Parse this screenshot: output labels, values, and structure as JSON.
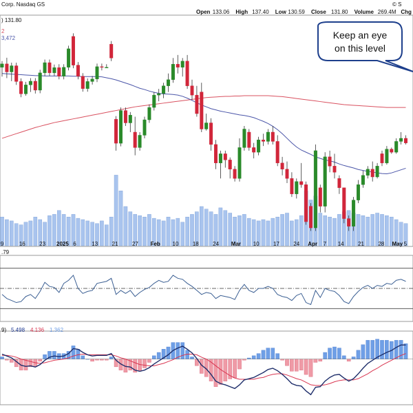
{
  "header": {
    "title": "Corp. Nasdaq GS",
    "ohlc": [
      {
        "label": "Open",
        "value": "133.06"
      },
      {
        "label": "High",
        "value": "137.40"
      },
      {
        "label": "Low",
        "value": "130.59"
      },
      {
        "label": "Close",
        "value": "131.80"
      },
      {
        "label": "Volume",
        "value": "269.4M"
      },
      {
        "label": "Chg",
        "value": ""
      }
    ],
    "corner_mark": "© S"
  },
  "legend": {
    "price_partial": ") 131.80",
    "ma_partial": "2",
    "ma_partial_2": "3,472",
    "rsi_partial": ".79",
    "macd_prefix": "9)",
    "macd_values": [
      {
        "value": "5.498",
        "color": "#1f3a93"
      },
      {
        "value": "4.136",
        "color": "#d9344f"
      },
      {
        "value": "1.362",
        "color": "#6f9fe6"
      }
    ]
  },
  "annotation": {
    "line1": "Keep an eye",
    "line2": "on this level"
  },
  "colors": {
    "up": "#2a8a2a",
    "down": "#d1263a",
    "ma_fast": "#4a55a8",
    "ma_slow": "#d9505f",
    "volume": "#a9c4ee",
    "rsi": "#3b5f93",
    "macd": "#1f2f6b",
    "signal": "#d9344f",
    "hist_pos": "#6f9fe6",
    "hist_neg": "#ef9aa6",
    "panel_border": "#999999"
  },
  "chart_data": {
    "type": "candlestick",
    "x_tick_labels": [
      "9",
      "16",
      "23",
      "2025",
      "6",
      "13",
      "21",
      "27",
      "Feb",
      "10",
      "18",
      "24",
      "Mar",
      "10",
      "17",
      "24",
      "Apr",
      "7",
      "14",
      "21",
      "28",
      "May",
      "5"
    ],
    "price_ylim": [
      85,
      155
    ],
    "candles": [
      {
        "o": 139.0,
        "h": 141.0,
        "l": 136.0,
        "c": 140.1
      },
      {
        "o": 140.1,
        "h": 142.1,
        "l": 135.5,
        "c": 137.5
      },
      {
        "o": 137.5,
        "h": 140.5,
        "l": 134.5,
        "c": 139.5
      },
      {
        "o": 139.5,
        "h": 140.5,
        "l": 133.3,
        "c": 134.4
      },
      {
        "o": 134.4,
        "h": 135.4,
        "l": 129.3,
        "c": 130.4
      },
      {
        "o": 130.4,
        "h": 134.3,
        "l": 129.8,
        "c": 133.3
      },
      {
        "o": 133.3,
        "h": 135.5,
        "l": 131.0,
        "c": 134.5
      },
      {
        "o": 134.5,
        "h": 135.5,
        "l": 130.5,
        "c": 131.6
      },
      {
        "o": 131.6,
        "h": 138.2,
        "l": 130.6,
        "c": 137.2
      },
      {
        "o": 137.2,
        "h": 141.5,
        "l": 136.2,
        "c": 140.5
      },
      {
        "o": 140.5,
        "h": 141.5,
        "l": 136.2,
        "c": 137.2
      },
      {
        "o": 137.2,
        "h": 139.9,
        "l": 136.2,
        "c": 138.9
      },
      {
        "o": 138.9,
        "h": 140.0,
        "l": 135.1,
        "c": 136.1
      },
      {
        "o": 136.1,
        "h": 140.0,
        "l": 135.1,
        "c": 139.0
      },
      {
        "o": 139.0,
        "h": 146.0,
        "l": 138.0,
        "c": 145.0
      },
      {
        "o": 149.0,
        "h": 150.0,
        "l": 138.7,
        "c": 139.7
      },
      {
        "o": 139.7,
        "h": 140.7,
        "l": 135.1,
        "c": 136.1
      },
      {
        "o": 136.1,
        "h": 137.1,
        "l": 131.1,
        "c": 132.1
      },
      {
        "o": 132.1,
        "h": 135.4,
        "l": 131.1,
        "c": 134.4
      },
      {
        "o": 134.4,
        "h": 136.2,
        "l": 133.4,
        "c": 135.2
      },
      {
        "o": 135.2,
        "h": 140.2,
        "l": 134.2,
        "c": 139.2
      },
      {
        "o": 139.2,
        "h": 140.2,
        "l": 138.0,
        "c": 139.0
      },
      {
        "o": 139.0,
        "h": 140.0,
        "l": 139.0,
        "c": 139.0
      },
      {
        "o": 146.5,
        "h": 147.5,
        "l": 141.0,
        "c": 142.0
      },
      {
        "o": 122.2,
        "h": 123.2,
        "l": 112.0,
        "c": 114.4
      },
      {
        "o": 114.4,
        "h": 126.0,
        "l": 113.4,
        "c": 125.0
      },
      {
        "o": 125.0,
        "h": 126.0,
        "l": 120.0,
        "c": 121.0
      },
      {
        "o": 121.0,
        "h": 124.5,
        "l": 118.0,
        "c": 123.5
      },
      {
        "o": 118.0,
        "h": 123.0,
        "l": 110.5,
        "c": 113.0
      },
      {
        "o": 113.0,
        "h": 118.0,
        "l": 112.0,
        "c": 117.0
      },
      {
        "o": 117.0,
        "h": 123.0,
        "l": 116.0,
        "c": 122.0
      },
      {
        "o": 122.0,
        "h": 127.0,
        "l": 121.0,
        "c": 126.0
      },
      {
        "o": 126.0,
        "h": 131.0,
        "l": 125.0,
        "c": 130.0
      },
      {
        "o": 130.0,
        "h": 132.0,
        "l": 128.0,
        "c": 130.5
      },
      {
        "o": 130.5,
        "h": 134.0,
        "l": 129.0,
        "c": 133.0
      },
      {
        "o": 133.0,
        "h": 137.0,
        "l": 131.0,
        "c": 135.0
      },
      {
        "o": 135.0,
        "h": 142.0,
        "l": 134.0,
        "c": 140.0
      },
      {
        "o": 140.0,
        "h": 143.0,
        "l": 137.0,
        "c": 139.0
      },
      {
        "o": 139.0,
        "h": 142.0,
        "l": 136.0,
        "c": 141.0
      },
      {
        "o": 141.0,
        "h": 143.0,
        "l": 132.0,
        "c": 133.0
      },
      {
        "o": 133.0,
        "h": 135.0,
        "l": 128.5,
        "c": 130.0
      },
      {
        "o": 130.0,
        "h": 133.0,
        "l": 123.0,
        "c": 124.0
      },
      {
        "o": 131.0,
        "h": 134.0,
        "l": 118.0,
        "c": 119.0
      },
      {
        "o": 119.0,
        "h": 124.0,
        "l": 118.5,
        "c": 121.0
      },
      {
        "o": 121.0,
        "h": 122.5,
        "l": 112.0,
        "c": 114.0
      },
      {
        "o": 114.0,
        "h": 115.5,
        "l": 106.0,
        "c": 108.0
      },
      {
        "o": 108.0,
        "h": 112.0,
        "l": 103.0,
        "c": 111.0
      },
      {
        "o": 111.0,
        "h": 112.0,
        "l": 106.5,
        "c": 109.0
      },
      {
        "o": 109.0,
        "h": 109.8,
        "l": 103.0,
        "c": 106.0
      },
      {
        "o": 106.0,
        "h": 107.0,
        "l": 102.0,
        "c": 103.0
      },
      {
        "o": 103.0,
        "h": 116.0,
        "l": 102.0,
        "c": 113.0
      },
      {
        "o": 113.0,
        "h": 120.0,
        "l": 112.0,
        "c": 119.0
      },
      {
        "o": 118.0,
        "h": 119.0,
        "l": 112.0,
        "c": 113.0
      },
      {
        "o": 113.0,
        "h": 114.5,
        "l": 109.5,
        "c": 111.5
      },
      {
        "o": 111.5,
        "h": 116.5,
        "l": 110.5,
        "c": 115.5
      },
      {
        "o": 115.5,
        "h": 117.5,
        "l": 113.5,
        "c": 115.0
      },
      {
        "o": 115.0,
        "h": 119.0,
        "l": 114.0,
        "c": 118.0
      },
      {
        "o": 118.0,
        "h": 120.0,
        "l": 114.0,
        "c": 115.0
      },
      {
        "o": 115.0,
        "h": 117.0,
        "l": 107.0,
        "c": 108.0
      },
      {
        "o": 108.0,
        "h": 110.0,
        "l": 104.0,
        "c": 106.0
      },
      {
        "o": 106.0,
        "h": 108.5,
        "l": 101.5,
        "c": 103.0
      },
      {
        "o": 103.0,
        "h": 105.0,
        "l": 97.0,
        "c": 98.0
      },
      {
        "o": 98.0,
        "h": 103.0,
        "l": 96.5,
        "c": 102.0
      },
      {
        "o": 102.0,
        "h": 108.0,
        "l": 100.0,
        "c": 101.0
      },
      {
        "o": 101.0,
        "h": 102.0,
        "l": 88.0,
        "c": 89.0
      },
      {
        "o": 94.0,
        "h": 95.0,
        "l": 86.0,
        "c": 87.0
      },
      {
        "o": 87.0,
        "h": 114.0,
        "l": 86.0,
        "c": 112.0
      },
      {
        "o": 100.0,
        "h": 101.0,
        "l": 92.0,
        "c": 94.0
      },
      {
        "o": 94.0,
        "h": 111.5,
        "l": 92.0,
        "c": 110.0
      },
      {
        "o": 110.0,
        "h": 112.0,
        "l": 105.0,
        "c": 107.0
      },
      {
        "o": 107.0,
        "h": 111.0,
        "l": 103.0,
        "c": 105.0
      },
      {
        "o": 103.0,
        "h": 104.0,
        "l": 98.0,
        "c": 100.0
      },
      {
        "o": 100.0,
        "h": 100.0,
        "l": 88.5,
        "c": 90.0
      },
      {
        "o": 90.0,
        "h": 91.0,
        "l": 86.0,
        "c": 87.5
      },
      {
        "o": 87.5,
        "h": 97.0,
        "l": 86.0,
        "c": 96.0
      },
      {
        "o": 96.0,
        "h": 102.5,
        "l": 95.0,
        "c": 101.0
      },
      {
        "o": 101.0,
        "h": 105.5,
        "l": 100.0,
        "c": 104.0
      },
      {
        "o": 104.0,
        "h": 107.0,
        "l": 103.0,
        "c": 106.0
      },
      {
        "o": 106.0,
        "h": 108.5,
        "l": 102.0,
        "c": 103.5
      },
      {
        "o": 103.5,
        "h": 108.0,
        "l": 103.0,
        "c": 107.0
      },
      {
        "o": 111.0,
        "h": 112.0,
        "l": 107.0,
        "c": 108.0
      },
      {
        "o": 108.0,
        "h": 113.5,
        "l": 107.5,
        "c": 112.5
      },
      {
        "o": 112.5,
        "h": 113.0,
        "l": 111.0,
        "c": 111.5
      },
      {
        "o": 111.5,
        "h": 116.0,
        "l": 111.0,
        "c": 115.0
      },
      {
        "o": 115.0,
        "h": 118.0,
        "l": 114.0,
        "c": 116.0
      },
      {
        "o": 116.0,
        "h": 117.0,
        "l": 114.0,
        "c": 114.5
      }
    ],
    "volume": [
      110,
      100,
      95,
      85,
      80,
      90,
      95,
      110,
      100,
      90,
      115,
      120,
      135,
      120,
      110,
      120,
      105,
      100,
      95,
      90,
      85,
      95,
      80,
      110,
      270,
      210,
      150,
      130,
      120,
      115,
      110,
      120,
      105,
      100,
      95,
      110,
      100,
      105,
      90,
      110,
      120,
      130,
      150,
      140,
      130,
      120,
      145,
      135,
      125,
      110,
      115,
      120,
      105,
      100,
      95,
      100,
      95,
      105,
      110,
      120,
      125,
      95,
      100,
      115,
      210,
      175,
      190,
      125,
      115,
      110,
      105,
      120,
      130,
      135,
      125,
      120,
      115,
      110,
      120,
      125,
      120,
      115,
      110,
      100,
      90,
      85
    ],
    "ma_50": [
      137.0,
      136.9,
      136.8,
      136.7,
      136.6,
      136.5,
      136.4,
      136.3,
      136.3,
      136.2,
      136.2,
      136.2,
      136.2,
      136.2,
      136.2,
      136.1,
      136.1,
      136.0,
      136.0,
      136.0,
      136.0,
      135.9,
      135.6,
      135.3,
      134.9,
      134.4,
      133.9,
      133.4,
      132.8,
      132.2,
      131.8,
      131.3,
      130.9,
      130.6,
      130.4,
      130.3,
      130.2,
      130.0,
      129.6,
      129.0,
      128.3,
      127.5,
      126.8,
      126.2,
      125.6,
      125.2,
      124.8,
      124.5,
      124.2,
      123.9,
      123.6,
      123.4,
      123.1,
      122.7,
      122.1,
      121.5,
      120.8,
      119.9,
      118.8,
      117.5,
      116.0,
      114.5,
      113.2,
      112.2,
      111.5,
      110.8,
      110.0,
      109.5,
      109.0,
      108.7,
      108.3,
      107.7,
      107.2,
      106.8,
      106.4,
      105.9,
      105.6,
      105.3,
      105.1,
      104.8,
      104.6,
      104.5,
      104.8,
      105.3,
      105.8,
      106.3
    ],
    "ma_200": [
      116.0,
      116.5,
      117.0,
      117.5,
      118.0,
      118.5,
      119.0,
      119.5,
      119.9,
      120.3,
      120.7,
      121.1,
      121.4,
      121.7,
      122.0,
      122.3,
      122.6,
      122.9,
      123.2,
      123.5,
      123.8,
      124.1,
      124.4,
      124.7,
      125.0,
      125.3,
      125.6,
      125.9,
      126.2,
      126.4,
      126.6,
      126.8,
      127.0,
      127.2,
      127.4,
      127.6,
      127.8,
      128.0,
      128.2,
      128.4,
      128.6,
      128.8,
      129.0,
      129.2,
      129.3,
      129.4,
      129.5,
      129.6,
      129.6,
      129.7,
      129.7,
      129.8,
      129.8,
      129.8,
      129.8,
      129.8,
      129.8,
      129.7,
      129.6,
      129.5,
      129.3,
      129.1,
      128.9,
      128.7,
      128.5,
      128.3,
      128.1,
      127.9,
      127.7,
      127.5,
      127.3,
      127.1,
      126.9,
      126.8,
      126.7,
      126.6,
      126.5,
      126.4,
      126.3,
      126.2,
      126.1,
      126.0,
      126.0,
      126.0,
      126.0,
      126.0
    ],
    "rsi": [
      44,
      40,
      38,
      36,
      37,
      42,
      44,
      40,
      47,
      56,
      52,
      51,
      46,
      55,
      58,
      63,
      50,
      45,
      47,
      48,
      55,
      56,
      57,
      60,
      44,
      48,
      45,
      48,
      42,
      46,
      49,
      51,
      55,
      58,
      56,
      57,
      63,
      60,
      59,
      55,
      52,
      48,
      44,
      46,
      45,
      40,
      43,
      42,
      41,
      39,
      48,
      54,
      48,
      46,
      50,
      50,
      52,
      50,
      44,
      42,
      41,
      38,
      43,
      45,
      36,
      34,
      48,
      41,
      50,
      48,
      47,
      43,
      37,
      35,
      42,
      47,
      51,
      53,
      50,
      53,
      52,
      55,
      54,
      58,
      59,
      57
    ],
    "macd": [
      0.8,
      0.5,
      0.2,
      -0.4,
      -1.0,
      -1.2,
      -1.1,
      -1.3,
      -0.9,
      -0.2,
      0.3,
      0.5,
      0.4,
      0.5,
      0.9,
      1.7,
      1.6,
      1.1,
      0.7,
      0.5,
      0.6,
      0.6,
      0.6,
      0.9,
      -0.2,
      -0.8,
      -1.2,
      -1.3,
      -1.8,
      -2.0,
      -1.8,
      -1.4,
      -0.8,
      -0.3,
      0.2,
      0.7,
      1.4,
      1.8,
      2.1,
      1.6,
      1.0,
      0.1,
      -1.0,
      -1.6,
      -2.5,
      -3.6,
      -4.0,
      -4.2,
      -4.5,
      -4.8,
      -4.2,
      -3.4,
      -3.2,
      -3.0,
      -2.6,
      -2.2,
      -1.7,
      -1.5,
      -1.9,
      -2.5,
      -3.2,
      -4.0,
      -4.3,
      -4.4,
      -5.2,
      -5.8,
      -4.6,
      -4.5,
      -3.6,
      -3.0,
      -2.6,
      -2.5,
      -3.1,
      -3.6,
      -3.2,
      -2.4,
      -1.5,
      -0.7,
      -0.2,
      0.3,
      0.7,
      1.1,
      1.4,
      1.9,
      2.3,
      2.3
    ],
    "signal": [
      0.6,
      0.6,
      0.5,
      0.3,
      0.0,
      -0.2,
      -0.4,
      -0.6,
      -0.7,
      -0.6,
      -0.4,
      -0.2,
      -0.1,
      0.0,
      0.2,
      0.5,
      0.7,
      0.8,
      0.7,
      0.7,
      0.7,
      0.7,
      0.7,
      0.7,
      0.5,
      0.2,
      0.0,
      -0.3,
      -0.6,
      -0.9,
      -1.0,
      -1.1,
      -1.1,
      -0.9,
      -0.7,
      -0.4,
      -0.1,
      0.3,
      0.6,
      0.8,
      0.8,
      0.7,
      0.3,
      0.0,
      -0.5,
      -1.1,
      -1.7,
      -2.2,
      -2.7,
      -3.1,
      -3.3,
      -3.3,
      -3.3,
      -3.3,
      -3.1,
      -3.0,
      -2.7,
      -2.5,
      -2.4,
      -2.4,
      -2.6,
      -2.9,
      -3.2,
      -3.4,
      -3.8,
      -4.2,
      -4.3,
      -4.3,
      -4.2,
      -4.0,
      -3.7,
      -3.5,
      -3.4,
      -3.4,
      -3.4,
      -3.2,
      -2.8,
      -2.4,
      -1.9,
      -1.5,
      -1.0,
      -0.6,
      -0.2,
      0.2,
      0.6,
      0.9
    ],
    "rsi_ylim": [
      20,
      80
    ],
    "macd_ylim": [
      -7,
      4
    ]
  }
}
